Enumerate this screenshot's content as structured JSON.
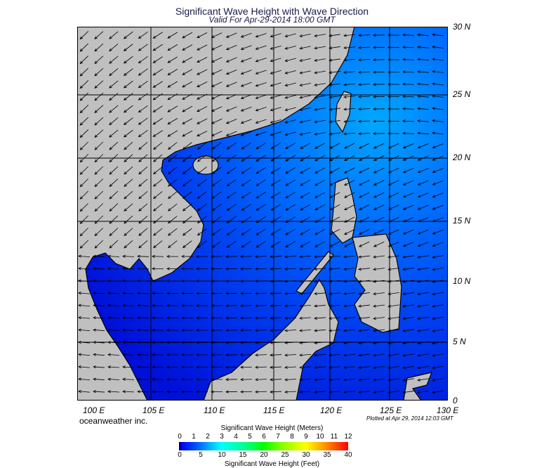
{
  "title": "Significant Wave Height with Wave Direction",
  "subtitle": "Valid For Apr-29-2014 18:00 GMT",
  "map": {
    "lat_labels": [
      "30 N",
      "25 N",
      "20 N",
      "15 N",
      "10 N",
      "5 N",
      "0"
    ],
    "lon_labels": [
      "100 E",
      "105 E",
      "110 E",
      "115 E",
      "120 E",
      "125 E",
      "130 E"
    ],
    "land_color": "#c0c0c0",
    "ocean_colors": [
      "#0000d0",
      "#0030f0",
      "#0060ff",
      "#00a8ff"
    ]
  },
  "credit": "oceanweather inc.",
  "plotted": "Plotted at Apr 29, 2014 12:03 GMT",
  "colorbar": {
    "title_meters": "Significant Wave Height (Meters)",
    "title_feet": "Significant Wave Height (Feet)",
    "meters": [
      "0",
      "1",
      "2",
      "3",
      "4",
      "5",
      "6",
      "7",
      "8",
      "9",
      "10",
      "11",
      "12"
    ],
    "feet": [
      "0",
      "5",
      "10",
      "15",
      "20",
      "25",
      "30",
      "35",
      "40"
    ]
  }
}
